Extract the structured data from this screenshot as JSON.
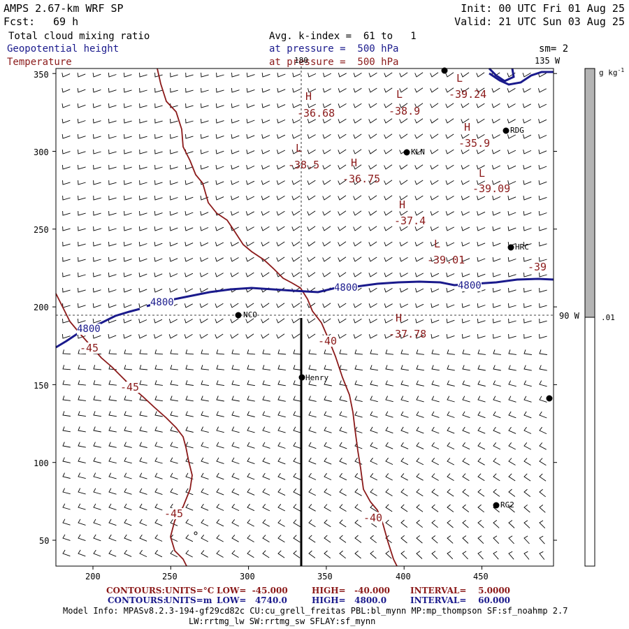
{
  "header": {
    "model": "AMPS 2.67-km WRF SP",
    "fcst_label": "Fcst:",
    "fcst_value": "69 h",
    "init": "Init: 00 UTC Fri 01 Aug 25",
    "valid": "Valid: 21 UTC Sun 03 Aug 25",
    "field1": "Total cloud mixing ratio",
    "field2": "Geopotential height",
    "field3": "Temperature",
    "avg": "Avg. k-index =  61 to   1",
    "pressure_line1": "at pressure =  500 hPa",
    "pressure_line2": "at pressure =  500 hPa",
    "smoothing": "sm= 2"
  },
  "map": {
    "x_ticks": [
      "200",
      "250",
      "300",
      "350",
      "400",
      "450"
    ],
    "y_ticks": [
      "50",
      "100",
      "150",
      "200",
      "250",
      "300",
      "350"
    ],
    "lon_label_180": "180",
    "lon_label_135w": "135 W",
    "lon_label_90w": "90 W",
    "stations": [
      "NCO",
      "Henry",
      "KLN",
      "HRC",
      "RG2",
      "RDG"
    ],
    "height_labels": [
      "4800",
      "4800",
      "4800",
      "4800"
    ],
    "temp_labels": [
      "-45",
      "-45",
      "-45",
      "-40",
      "-40",
      "-39"
    ],
    "highs_lows": [
      {
        "sym": "H",
        "val": "-36.68"
      },
      {
        "sym": "L",
        "val": "-38.5"
      },
      {
        "sym": "H",
        "val": "-36.75"
      },
      {
        "sym": "L",
        "val": "-38.9"
      },
      {
        "sym": "L",
        "val": "-39.24"
      },
      {
        "sym": "H",
        "val": "-35.9"
      },
      {
        "sym": "L",
        "val": "-39.09"
      },
      {
        "sym": "H",
        "val": "-37.4"
      },
      {
        "sym": "L",
        "val": "-39.01"
      },
      {
        "sym": "H",
        "val": "-37.78"
      }
    ]
  },
  "colorbar": {
    "units": "g kg",
    "units_exp": "-1",
    "label": ".01",
    "fill_fraction": 0.5
  },
  "footer": {
    "c1_label": "CONTOURS:",
    "c1_units": "UNITS=°C",
    "c1_low": "LOW=  -45.000",
    "c1_high": "HIGH=   -40.000",
    "c1_interval": "INTERVAL=    5.0000",
    "c2_label": "CONTOURS:",
    "c2_units": "UNITS=m",
    "c2_low": "LOW=   4740.0",
    "c2_high": "HIGH=   4800.0",
    "c2_interval": "INTERVAL=    60.000",
    "model_info": "Model Info: MPASv8.2.3-194-gf29cd82c CU:cu_grell_freitas PBL:bl_mynn MP:mp_thompson SF:sf_noahmp 2.7",
    "model_info2": "LW:rrtmg_lw SW:rrtmg_sw SFLAY:sf_mynn"
  },
  "colors": {
    "height": "#1a1a8c",
    "temp": "#8b1a1a",
    "barb": "#000000",
    "cbar_fill": "#b4b4b4"
  }
}
